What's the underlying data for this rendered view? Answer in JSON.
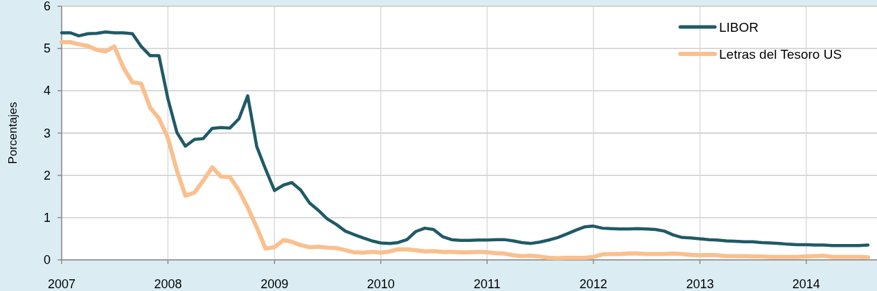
{
  "chart_data": {
    "type": "line",
    "ylabel": "Porcentajes",
    "x": [
      "2007-01",
      "2007-02",
      "2007-03",
      "2007-04",
      "2007-05",
      "2007-06",
      "2007-07",
      "2007-08",
      "2007-09",
      "2007-10",
      "2007-11",
      "2007-12",
      "2008-01",
      "2008-02",
      "2008-03",
      "2008-04",
      "2008-05",
      "2008-06",
      "2008-07",
      "2008-08",
      "2008-09",
      "2008-10",
      "2008-11",
      "2008-12",
      "2009-01",
      "2009-02",
      "2009-03",
      "2009-04",
      "2009-05",
      "2009-06",
      "2009-07",
      "2009-08",
      "2009-09",
      "2009-10",
      "2009-11",
      "2009-12",
      "2010-01",
      "2010-02",
      "2010-03",
      "2010-04",
      "2010-05",
      "2010-06",
      "2010-07",
      "2010-08",
      "2010-09",
      "2010-10",
      "2010-11",
      "2010-12",
      "2011-01",
      "2011-02",
      "2011-03",
      "2011-04",
      "2011-05",
      "2011-06",
      "2011-07",
      "2011-08",
      "2011-09",
      "2011-10",
      "2011-11",
      "2011-12",
      "2012-01",
      "2012-02",
      "2012-03",
      "2012-04",
      "2012-05",
      "2012-06",
      "2012-07",
      "2012-08",
      "2012-09",
      "2012-10",
      "2012-11",
      "2012-12",
      "2013-01",
      "2013-02",
      "2013-03",
      "2013-04",
      "2013-05",
      "2013-06",
      "2013-07",
      "2013-08",
      "2013-09",
      "2013-10",
      "2013-11",
      "2013-12",
      "2014-01",
      "2014-02",
      "2014-03",
      "2014-04",
      "2014-05",
      "2014-06",
      "2014-07",
      "2014-08"
    ],
    "series": [
      {
        "name": "LIBOR",
        "color": "#1f5a66",
        "values": [
          5.37,
          5.37,
          5.3,
          5.35,
          5.36,
          5.39,
          5.37,
          5.37,
          5.35,
          5.05,
          4.83,
          4.83,
          3.81,
          3.01,
          2.69,
          2.85,
          2.87,
          3.11,
          3.13,
          3.12,
          3.34,
          3.88,
          2.68,
          2.15,
          1.64,
          1.77,
          1.83,
          1.65,
          1.35,
          1.17,
          0.97,
          0.84,
          0.68,
          0.6,
          0.52,
          0.45,
          0.4,
          0.39,
          0.41,
          0.48,
          0.67,
          0.75,
          0.72,
          0.55,
          0.48,
          0.46,
          0.46,
          0.47,
          0.47,
          0.48,
          0.48,
          0.45,
          0.41,
          0.39,
          0.42,
          0.47,
          0.53,
          0.61,
          0.7,
          0.78,
          0.8,
          0.75,
          0.74,
          0.73,
          0.73,
          0.74,
          0.73,
          0.72,
          0.68,
          0.59,
          0.53,
          0.52,
          0.5,
          0.48,
          0.47,
          0.45,
          0.44,
          0.43,
          0.43,
          0.41,
          0.4,
          0.39,
          0.37,
          0.36,
          0.36,
          0.35,
          0.35,
          0.34,
          0.34,
          0.34,
          0.34,
          0.35
        ]
      },
      {
        "name": "Letras del Tesoro US",
        "color": "#f9c08e",
        "values": [
          5.15,
          5.15,
          5.1,
          5.06,
          4.97,
          4.93,
          5.05,
          4.55,
          4.2,
          4.17,
          3.6,
          3.35,
          2.88,
          2.11,
          1.52,
          1.59,
          1.87,
          2.19,
          1.97,
          1.96,
          1.64,
          1.24,
          0.77,
          0.27,
          0.3,
          0.47,
          0.43,
          0.35,
          0.3,
          0.31,
          0.29,
          0.28,
          0.23,
          0.18,
          0.17,
          0.19,
          0.17,
          0.2,
          0.25,
          0.25,
          0.23,
          0.2,
          0.21,
          0.19,
          0.19,
          0.18,
          0.18,
          0.19,
          0.18,
          0.16,
          0.15,
          0.11,
          0.09,
          0.1,
          0.08,
          0.05,
          0.04,
          0.05,
          0.05,
          0.05,
          0.07,
          0.13,
          0.14,
          0.14,
          0.15,
          0.15,
          0.14,
          0.14,
          0.14,
          0.15,
          0.14,
          0.12,
          0.11,
          0.12,
          0.11,
          0.09,
          0.09,
          0.09,
          0.08,
          0.08,
          0.07,
          0.07,
          0.07,
          0.07,
          0.08,
          0.09,
          0.1,
          0.07,
          0.07,
          0.07,
          0.07,
          0.06
        ]
      }
    ],
    "xlim": [
      "2007-01",
      "2014-09"
    ],
    "xticks": [
      "2007",
      "2008",
      "2009",
      "2010",
      "2011",
      "2012",
      "2013",
      "2014"
    ],
    "ylim": [
      0,
      6
    ],
    "yticks": [
      0,
      1,
      2,
      3,
      4,
      5,
      6
    ],
    "grid": true,
    "legend": "top right"
  }
}
